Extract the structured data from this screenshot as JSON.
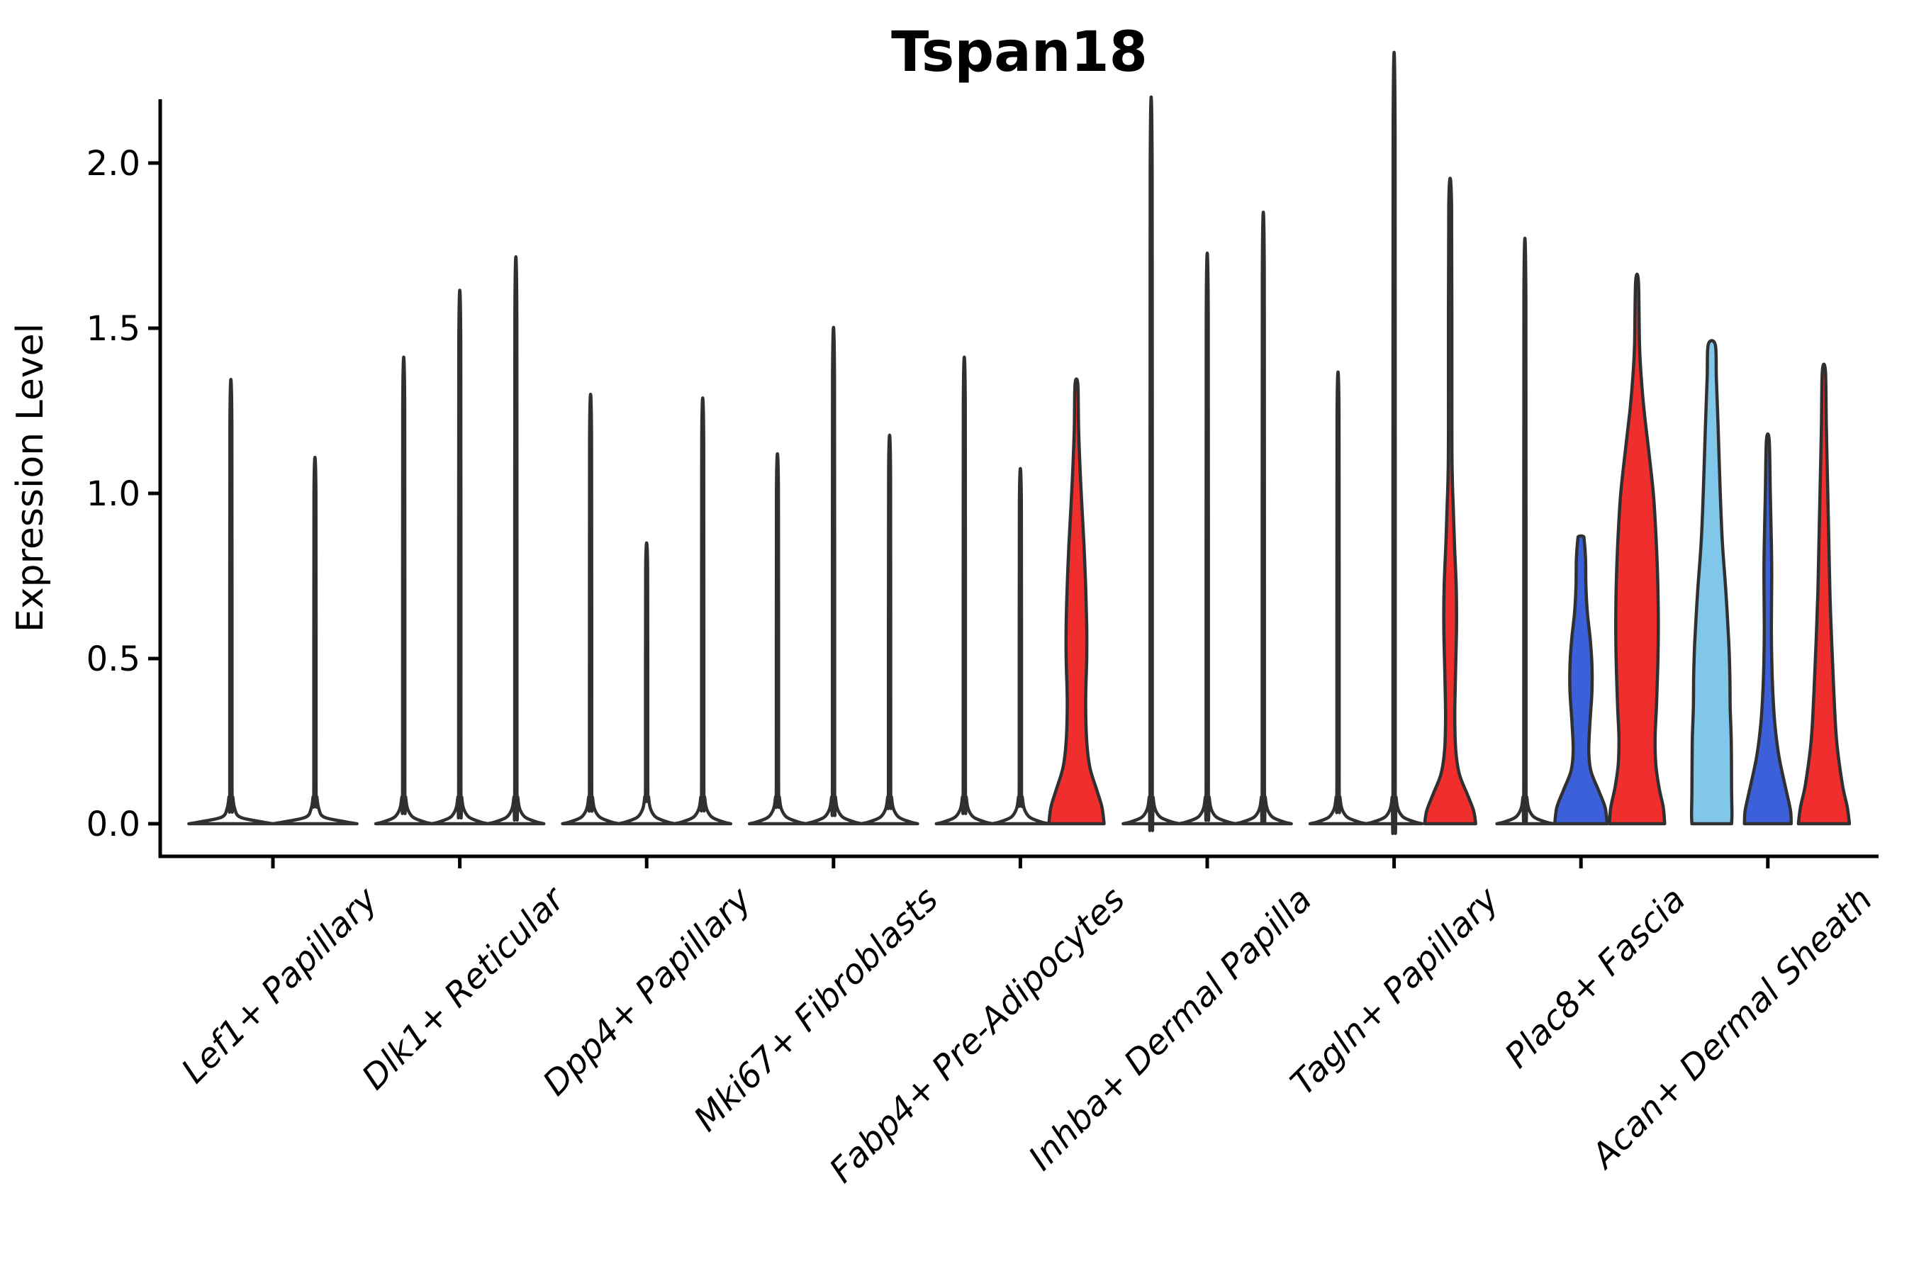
{
  "colors": {
    "red": "#F02E2E",
    "blue": "#3C5FDA",
    "skyblue": "#80C7EA",
    "thin_fill": "#FFFFFF",
    "outline": "#303030",
    "axis": "#000000"
  },
  "chart_data": {
    "type": "violin",
    "title": "Tspan18",
    "ylabel": "Expression Level",
    "xlabel": "",
    "ylim": [
      -0.1,
      2.19
    ],
    "yticks": [
      0.0,
      0.5,
      1.0,
      1.5,
      2.0
    ],
    "ytick_labels": [
      "0.0",
      "0.5",
      "1.0",
      "1.5",
      "2.0"
    ],
    "grid": false,
    "legend": "none",
    "categories": [
      "Lef1+ Papillary",
      "Dlk1+ Reticular",
      "Dpp4+ Papillary",
      "Mki67+ Fibroblasts",
      "Fabp4+ Pre-Adipocytes",
      "Inhba+ Dermal Papilla",
      "Tagln+ Papillary",
      "Plac8+ Fascia",
      "Acan+ Dermal Sheath"
    ],
    "groups": [
      {
        "category": "Lef1+ Papillary",
        "violins": [
          {
            "color": "thin",
            "max": 1.21
          },
          {
            "color": "thin",
            "max": 1.0
          }
        ]
      },
      {
        "category": "Dlk1+ Reticular",
        "violins": [
          {
            "color": "thin",
            "max": 1.27
          },
          {
            "color": "thin",
            "max": 1.45
          },
          {
            "color": "thin",
            "max": 1.54
          }
        ]
      },
      {
        "category": "Dpp4+ Papillary",
        "violins": [
          {
            "color": "thin",
            "max": 1.17
          },
          {
            "color": "thin",
            "max": 0.77
          },
          {
            "color": "thin",
            "max": 1.16
          }
        ]
      },
      {
        "category": "Mki67+ Fibroblasts",
        "violins": [
          {
            "color": "thin",
            "max": 1.01
          },
          {
            "color": "thin",
            "max": 1.35
          },
          {
            "color": "thin",
            "max": 1.06
          }
        ]
      },
      {
        "category": "Fabp4+ Pre-Adipocytes",
        "violins": [
          {
            "color": "thin",
            "max": 1.27
          },
          {
            "color": "thin",
            "max": 0.97
          },
          {
            "color": "red",
            "max": 1.33,
            "profile": [
              [
                0,
                39
              ],
              [
                0.05,
                36
              ],
              [
                0.1,
                29
              ],
              [
                0.17,
                19
              ],
              [
                0.25,
                14.5
              ],
              [
                0.37,
                13
              ],
              [
                0.5,
                14.5
              ],
              [
                0.6,
                14.5
              ],
              [
                0.72,
                13
              ],
              [
                0.85,
                10.5
              ],
              [
                0.97,
                7.5
              ],
              [
                1.08,
                5
              ],
              [
                1.2,
                3
              ],
              [
                1.33,
                2
              ]
            ]
          }
        ]
      },
      {
        "category": "Inhba+ Dermal Papilla",
        "violins": [
          {
            "color": "thin",
            "max": 1.97
          },
          {
            "color": "thin",
            "max": 1.55
          },
          {
            "color": "thin",
            "max": 1.66
          }
        ]
      },
      {
        "category": "Tagln+ Papillary",
        "violins": [
          {
            "color": "thin",
            "max": 1.23
          },
          {
            "color": "thin",
            "max": 2.09
          },
          {
            "color": "red",
            "max": 1.87,
            "profile": [
              [
                0,
                36
              ],
              [
                0.04,
                33
              ],
              [
                0.09,
                24
              ],
              [
                0.15,
                13
              ],
              [
                0.22,
                8
              ],
              [
                0.32,
                6.5
              ],
              [
                0.45,
                7.5
              ],
              [
                0.6,
                9
              ],
              [
                0.72,
                8.5
              ],
              [
                0.85,
                6
              ],
              [
                0.95,
                4.5
              ],
              [
                1.05,
                3
              ],
              [
                1.2,
                2.4
              ],
              [
                1.87,
                2
              ]
            ]
          }
        ]
      },
      {
        "category": "Plac8+ Fascia",
        "violins": [
          {
            "color": "thin",
            "max": 1.59
          },
          {
            "color": "blue",
            "max": 0.87,
            "profile": [
              [
                0,
                37
              ],
              [
                0.05,
                34
              ],
              [
                0.1,
                25
              ],
              [
                0.16,
                14
              ],
              [
                0.22,
                11
              ],
              [
                0.3,
                12.5
              ],
              [
                0.4,
                15.5
              ],
              [
                0.48,
                15.5
              ],
              [
                0.56,
                13
              ],
              [
                0.64,
                9
              ],
              [
                0.72,
                7
              ],
              [
                0.8,
                6.5
              ],
              [
                0.86,
                4.5
              ],
              [
                0.87,
                3
              ]
            ]
          },
          {
            "color": "red",
            "max": 1.64,
            "profile": [
              [
                0,
                39
              ],
              [
                0.05,
                37
              ],
              [
                0.11,
                31
              ],
              [
                0.18,
                26.5
              ],
              [
                0.26,
                25.5
              ],
              [
                0.36,
                27.5
              ],
              [
                0.5,
                29.5
              ],
              [
                0.62,
                30
              ],
              [
                0.75,
                29
              ],
              [
                0.88,
                26.5
              ],
              [
                1.0,
                23
              ],
              [
                1.12,
                17
              ],
              [
                1.25,
                10
              ],
              [
                1.35,
                6
              ],
              [
                1.45,
                3.5
              ],
              [
                1.64,
                2
              ]
            ]
          }
        ]
      },
      {
        "category": "Acan+ Dermal Sheath",
        "violins": [
          {
            "color": "skyblue",
            "max": 1.45,
            "profile": [
              [
                0,
                28
              ],
              [
                0.03,
                28.5
              ],
              [
                0.1,
                28
              ],
              [
                0.25,
                27.5
              ],
              [
                0.35,
                26
              ],
              [
                0.45,
                25.5
              ],
              [
                0.55,
                24
              ],
              [
                0.7,
                20
              ],
              [
                0.85,
                15
              ],
              [
                1.0,
                12
              ],
              [
                1.2,
                9
              ],
              [
                1.35,
                6.5
              ],
              [
                1.45,
                5
              ]
            ]
          },
          {
            "color": "blue",
            "max": 1.16,
            "profile": [
              [
                0,
                33
              ],
              [
                0.04,
                32
              ],
              [
                0.1,
                26
              ],
              [
                0.2,
                16
              ],
              [
                0.3,
                10
              ],
              [
                0.4,
                7
              ],
              [
                0.5,
                5.5
              ],
              [
                0.6,
                5
              ],
              [
                0.75,
                5.5
              ],
              [
                0.85,
                5
              ],
              [
                1.0,
                3.5
              ],
              [
                1.16,
                2
              ]
            ]
          },
          {
            "color": "red",
            "max": 1.37,
            "profile": [
              [
                0,
                36
              ],
              [
                0.05,
                33
              ],
              [
                0.12,
                26
              ],
              [
                0.25,
                18
              ],
              [
                0.4,
                14
              ],
              [
                0.55,
                11
              ],
              [
                0.7,
                8.5
              ],
              [
                0.85,
                7
              ],
              [
                1.0,
                5.5
              ],
              [
                1.2,
                3.5
              ],
              [
                1.37,
                2.2
              ]
            ]
          }
        ]
      }
    ]
  }
}
